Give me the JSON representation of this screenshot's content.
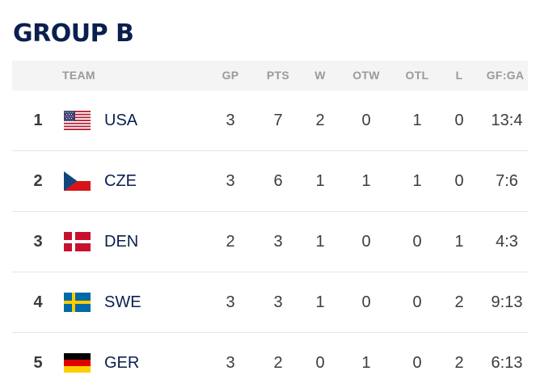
{
  "title": "GROUP B",
  "columns": {
    "team": "TEAM",
    "gp": "GP",
    "pts": "PTS",
    "w": "W",
    "otw": "OTW",
    "otl": "OTL",
    "l": "L",
    "gfga": "GF:GA"
  },
  "rows": [
    {
      "rank": "1",
      "team": "USA",
      "flag": "usa-flag",
      "gp": "3",
      "pts": "7",
      "w": "2",
      "otw": "0",
      "otl": "1",
      "l": "0",
      "gfga": "13:4"
    },
    {
      "rank": "2",
      "team": "CZE",
      "flag": "czech-flag",
      "gp": "3",
      "pts": "6",
      "w": "1",
      "otw": "1",
      "otl": "1",
      "l": "0",
      "gfga": "7:6"
    },
    {
      "rank": "3",
      "team": "DEN",
      "flag": "denmark-flag",
      "gp": "2",
      "pts": "3",
      "w": "1",
      "otw": "0",
      "otl": "0",
      "l": "1",
      "gfga": "4:3"
    },
    {
      "rank": "4",
      "team": "SWE",
      "flag": "sweden-flag",
      "gp": "3",
      "pts": "3",
      "w": "1",
      "otw": "0",
      "otl": "0",
      "l": "2",
      "gfga": "9:13"
    },
    {
      "rank": "5",
      "team": "GER",
      "flag": "germany-flag",
      "gp": "3",
      "pts": "2",
      "w": "0",
      "otw": "1",
      "otl": "0",
      "l": "2",
      "gfga": "6:13"
    }
  ],
  "colors": {
    "title": "#0b1f4f",
    "header_bg": "#f4f4f4",
    "header_text": "#9a9a9a"
  }
}
